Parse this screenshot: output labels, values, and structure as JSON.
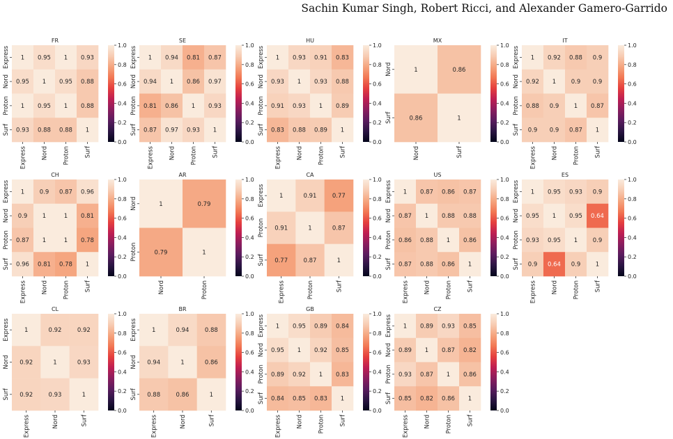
{
  "header": {
    "authors": "Sachin Kumar Singh, Robert Ricci, and Alexander Gamero-Garrido"
  },
  "colorbar": {
    "ticks": [
      "0.0",
      "0.2",
      "0.4",
      "0.6",
      "0.8",
      "1.0"
    ],
    "range": [
      0,
      1
    ],
    "colormap": "rocket",
    "colormap_stops": [
      "#03051a",
      "#2b1543",
      "#5a1c5e",
      "#8a1d5e",
      "#be1e52",
      "#e53f3e",
      "#f27854",
      "#f5a57f",
      "#f7ccb3",
      "#faebdd"
    ]
  },
  "chart_data": [
    {
      "type": "heatmap",
      "title": "FR",
      "labels": [
        "Express",
        "Nord",
        "Proton",
        "Surf"
      ],
      "values": [
        [
          1,
          0.95,
          1,
          0.93
        ],
        [
          0.95,
          1,
          0.95,
          0.88
        ],
        [
          1,
          0.95,
          1,
          0.88
        ],
        [
          0.93,
          0.88,
          0.88,
          1
        ]
      ]
    },
    {
      "type": "heatmap",
      "title": "SE",
      "labels": [
        "Express",
        "Nord",
        "Proton",
        "Surf"
      ],
      "values": [
        [
          1,
          0.94,
          0.81,
          0.87
        ],
        [
          0.94,
          1,
          0.86,
          0.97
        ],
        [
          0.81,
          0.86,
          1,
          0.93
        ],
        [
          0.87,
          0.97,
          0.93,
          1
        ]
      ]
    },
    {
      "type": "heatmap",
      "title": "HU",
      "labels": [
        "Express",
        "Nord",
        "Proton",
        "Surf"
      ],
      "values": [
        [
          1,
          0.93,
          0.91,
          0.83
        ],
        [
          0.93,
          1,
          0.93,
          0.88
        ],
        [
          0.91,
          0.93,
          1,
          0.89
        ],
        [
          0.83,
          0.88,
          0.89,
          1
        ]
      ]
    },
    {
      "type": "heatmap",
      "title": "MX",
      "labels": [
        "Nord",
        "Surf"
      ],
      "values": [
        [
          1,
          0.86
        ],
        [
          0.86,
          1
        ]
      ]
    },
    {
      "type": "heatmap",
      "title": "IT",
      "labels": [
        "Express",
        "Nord",
        "Proton",
        "Surf"
      ],
      "values": [
        [
          1,
          0.92,
          0.88,
          0.9
        ],
        [
          0.92,
          1,
          0.9,
          0.9
        ],
        [
          0.88,
          0.9,
          1,
          0.87
        ],
        [
          0.9,
          0.9,
          0.87,
          1
        ]
      ]
    },
    {
      "type": "heatmap",
      "title": "CH",
      "labels": [
        "Express",
        "Nord",
        "Proton",
        "Surf"
      ],
      "values": [
        [
          1,
          0.9,
          0.87,
          0.96
        ],
        [
          0.9,
          1,
          1,
          0.81
        ],
        [
          0.87,
          1,
          1,
          0.78
        ],
        [
          0.96,
          0.81,
          0.78,
          1
        ]
      ]
    },
    {
      "type": "heatmap",
      "title": "AR",
      "labels": [
        "Nord",
        "Proton"
      ],
      "values": [
        [
          1,
          0.79
        ],
        [
          0.79,
          1
        ]
      ]
    },
    {
      "type": "heatmap",
      "title": "CA",
      "labels": [
        "Express",
        "Proton",
        "Surf"
      ],
      "values": [
        [
          1,
          0.91,
          0.77
        ],
        [
          0.91,
          1,
          0.87
        ],
        [
          0.77,
          0.87,
          1
        ]
      ]
    },
    {
      "type": "heatmap",
      "title": "US",
      "labels": [
        "Express",
        "Nord",
        "Proton",
        "Surf"
      ],
      "values": [
        [
          1,
          0.87,
          0.86,
          0.87
        ],
        [
          0.87,
          1,
          0.88,
          0.88
        ],
        [
          0.86,
          0.88,
          1,
          0.86
        ],
        [
          0.87,
          0.88,
          0.86,
          1
        ]
      ]
    },
    {
      "type": "heatmap",
      "title": "ES",
      "labels": [
        "Express",
        "Nord",
        "Proton",
        "Surf"
      ],
      "values": [
        [
          1,
          0.95,
          0.93,
          0.9
        ],
        [
          0.95,
          1,
          0.95,
          0.64
        ],
        [
          0.93,
          0.95,
          1,
          0.9
        ],
        [
          0.9,
          0.64,
          0.9,
          1
        ]
      ]
    },
    {
      "type": "heatmap",
      "title": "CL",
      "labels": [
        "Express",
        "Nord",
        "Surf"
      ],
      "values": [
        [
          1,
          0.92,
          0.92
        ],
        [
          0.92,
          1,
          0.93
        ],
        [
          0.92,
          0.93,
          1
        ]
      ]
    },
    {
      "type": "heatmap",
      "title": "BR",
      "labels": [
        "Express",
        "Nord",
        "Surf"
      ],
      "values": [
        [
          1,
          0.94,
          0.88
        ],
        [
          0.94,
          1,
          0.86
        ],
        [
          0.88,
          0.86,
          1
        ]
      ]
    },
    {
      "type": "heatmap",
      "title": "GB",
      "labels": [
        "Express",
        "Nord",
        "Proton",
        "Surf"
      ],
      "values": [
        [
          1,
          0.95,
          0.89,
          0.84
        ],
        [
          0.95,
          1,
          0.92,
          0.85
        ],
        [
          0.89,
          0.92,
          1,
          0.83
        ],
        [
          0.84,
          0.85,
          0.83,
          1
        ]
      ]
    },
    {
      "type": "heatmap",
      "title": "CZ",
      "labels": [
        "Express",
        "Nord",
        "Proton",
        "Surf"
      ],
      "values": [
        [
          1,
          0.89,
          0.93,
          0.85
        ],
        [
          0.89,
          1,
          0.87,
          0.82
        ],
        [
          0.93,
          0.87,
          1,
          0.86
        ],
        [
          0.85,
          0.82,
          0.86,
          1
        ]
      ]
    }
  ]
}
